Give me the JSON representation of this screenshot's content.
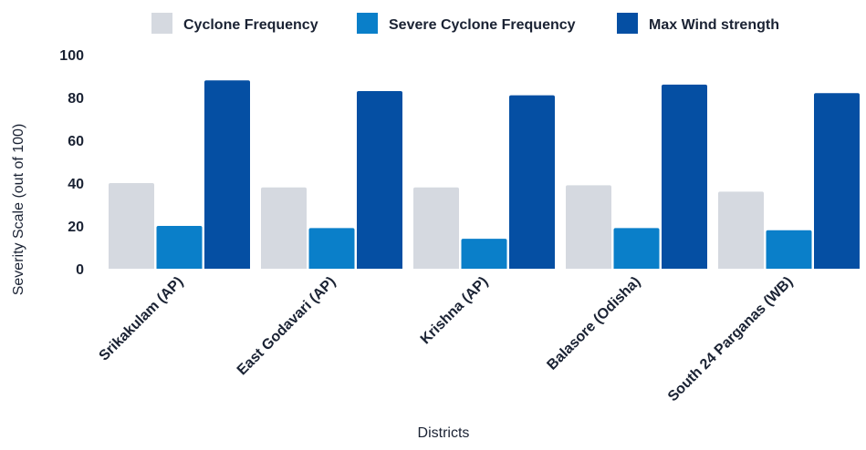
{
  "chart_data": {
    "type": "bar",
    "title": "",
    "xlabel": "Districts",
    "ylabel": "Severity Scale (out of 100)",
    "ylim": [
      0,
      100
    ],
    "yticks": [
      0,
      20,
      40,
      60,
      80,
      100
    ],
    "grid": false,
    "legend_position": "top",
    "categories": [
      "Srikakulam (AP)",
      "East Godavari (AP)",
      "Krishna (AP)",
      "Balasore (Odisha)",
      "South 24 Parganas (WB)"
    ],
    "series": [
      {
        "name": "Cyclone Frequency",
        "color": "#d5d9e0",
        "values": [
          40,
          38,
          38,
          39,
          36
        ]
      },
      {
        "name": "Severe Cyclone Frequency",
        "color": "#0a7fc9",
        "values": [
          20,
          19,
          14,
          19,
          18
        ]
      },
      {
        "name": "Max Wind strength",
        "color": "#054fa3",
        "values": [
          88,
          83,
          81,
          86,
          82
        ]
      }
    ]
  }
}
